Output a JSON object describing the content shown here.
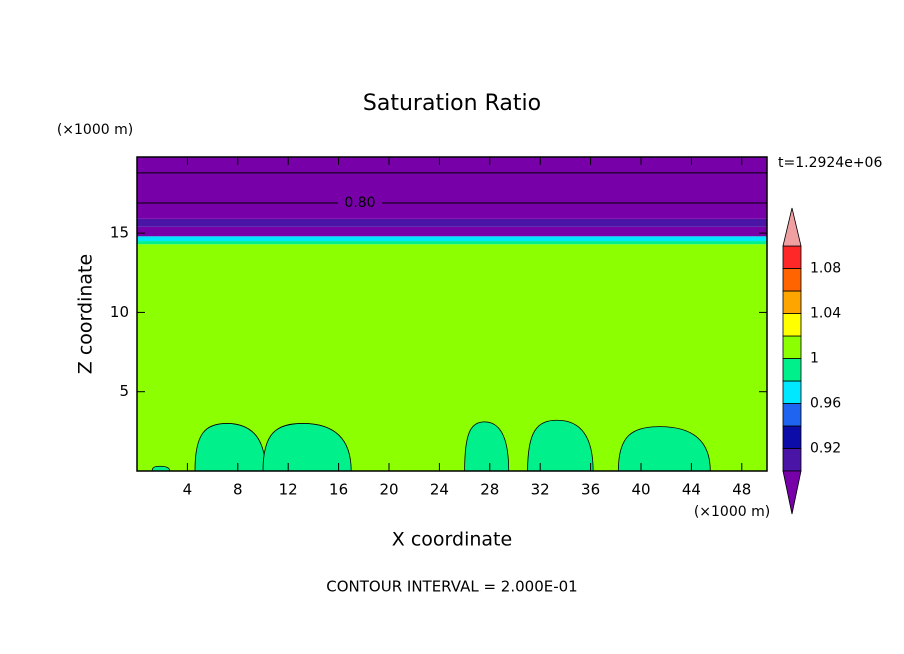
{
  "chart_data": {
    "type": "contour",
    "title": "Saturation Ratio",
    "xlabel": "X coordinate",
    "ylabel": "Z coordinate",
    "xunit": "(×1000 m)",
    "yunit": "(×1000 m)",
    "time_label": "t=1.2924e+06",
    "footer": "CONTOUR INTERVAL = 2.000E-01",
    "xlim": [
      0,
      50
    ],
    "ylim": [
      0,
      19.8
    ],
    "xticks": [
      4,
      8,
      12,
      16,
      20,
      24,
      28,
      32,
      36,
      40,
      44,
      48
    ],
    "yticks": [
      5,
      10,
      15
    ],
    "levels": [
      0.9,
      0.92,
      0.94,
      0.96,
      0.98,
      1.0,
      1.02,
      1.04,
      1.06,
      1.08,
      1.1
    ],
    "colors": [
      "#4a14a6",
      "#0c0ca8",
      "#1e64f0",
      "#00e8ff",
      "#00f08c",
      "#8cff00",
      "#ffff00",
      "#ffa500",
      "#ff6400",
      "#ff2828"
    ],
    "under_color": "#7800a8",
    "over_color": "#f0a0a0",
    "cbar_ticks": [
      0.92,
      0.96,
      1,
      1.04,
      1.08
    ],
    "layers": [
      {
        "z": [
          0,
          14.3
        ],
        "value": 1.01
      },
      {
        "z": [
          14.3,
          14.5
        ],
        "value": 0.99
      },
      {
        "z": [
          14.5,
          14.8
        ],
        "value": 0.97
      },
      {
        "z": [
          14.8,
          15.4
        ],
        "value": 0.85
      },
      {
        "z": [
          15.4,
          15.9
        ],
        "value": 0.91
      },
      {
        "z": [
          15.9,
          19.8
        ],
        "value": 0.85
      }
    ],
    "cells": [
      {
        "x": [
          1.2,
          2.6
        ],
        "top": 0.3,
        "value": 0.99
      },
      {
        "x": [
          4.6,
          10.2
        ],
        "top": 3.0,
        "value": 0.99
      },
      {
        "x": [
          10.0,
          17.0
        ],
        "top": 3.0,
        "value": 0.99
      },
      {
        "x": [
          26.0,
          29.5
        ],
        "top": 3.1,
        "value": 0.99
      },
      {
        "x": [
          31.0,
          36.2
        ],
        "top": 3.2,
        "value": 0.99
      },
      {
        "x": [
          38.2,
          45.5
        ],
        "top": 2.8,
        "value": 0.99
      }
    ],
    "contour_lines": [
      {
        "z": 16.9,
        "value": 0.8,
        "label": "0.80"
      },
      {
        "z": 18.8,
        "value": 0.6
      }
    ]
  }
}
